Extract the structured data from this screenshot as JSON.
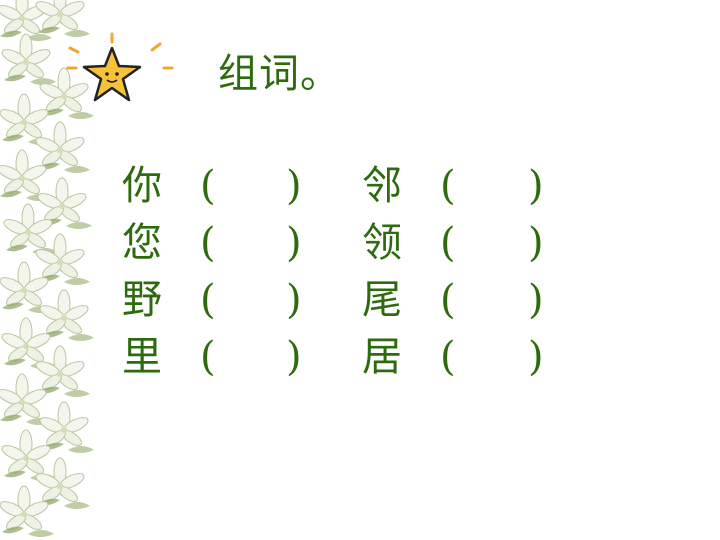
{
  "title": "组词。",
  "colors": {
    "text": "#2e6b0f",
    "star_fill": "#f5c23a",
    "leaf": "#8fa86a"
  },
  "decor": {
    "star": "star-icon",
    "border": "lily-flower-border"
  },
  "rows": [
    {
      "char_left": "你",
      "char_right": "邻"
    },
    {
      "char_left": "您",
      "char_right": "领"
    },
    {
      "char_left": "野",
      "char_right": "尾"
    },
    {
      "char_left": "里",
      "char_right": "居"
    }
  ],
  "paren_open": "(",
  "paren_close": ")"
}
